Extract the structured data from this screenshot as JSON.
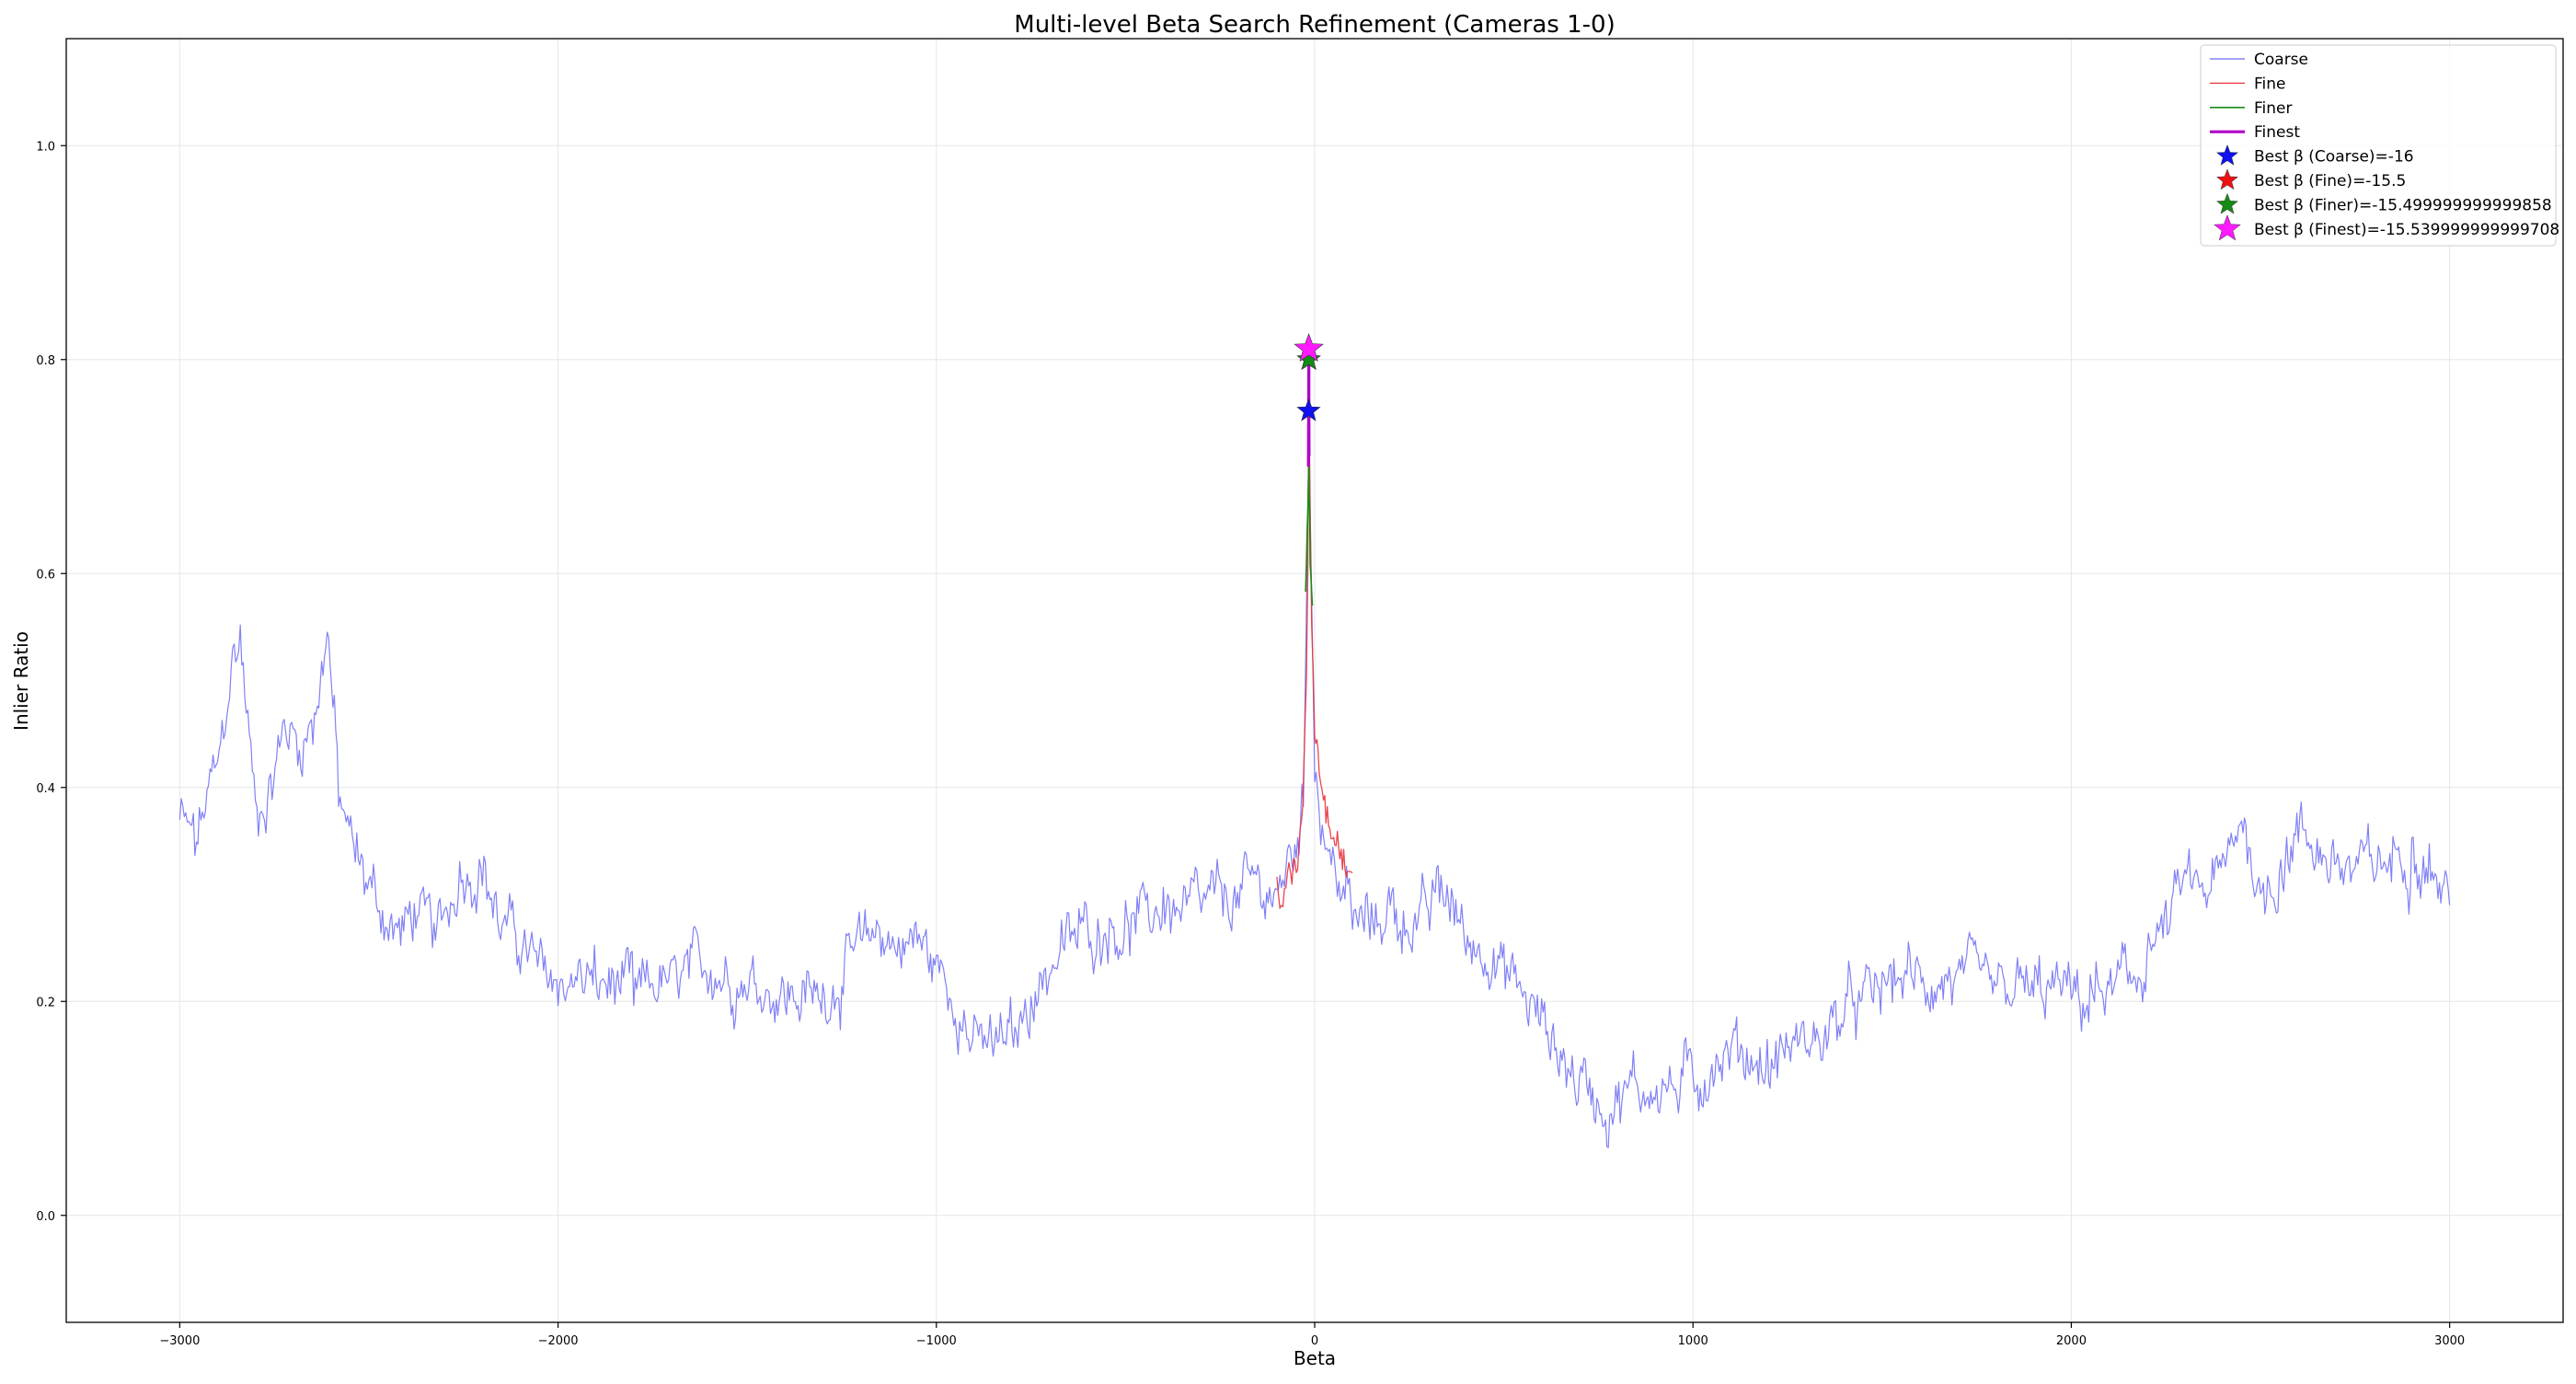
{
  "chart_data": {
    "type": "line",
    "title": "Multi-level Beta Search Refinement (Cameras 1-0)",
    "xlabel": "Beta",
    "ylabel": "Inlier Ratio",
    "xlim": [
      -3300,
      3300
    ],
    "ylim": [
      -0.1,
      1.1
    ],
    "xticks": [
      -3000,
      -2000,
      -1000,
      0,
      1000,
      2000,
      3000
    ],
    "xtick_labels": [
      "−3000",
      "−2000",
      "−1000",
      "0",
      "1000",
      "2000",
      "3000"
    ],
    "yticks": [
      0.0,
      0.2,
      0.4,
      0.6,
      0.8,
      1.0
    ],
    "ytick_labels": [
      "0.0",
      "0.2",
      "0.4",
      "0.6",
      "0.8",
      "1.0"
    ],
    "grid": true,
    "legend_position": "top-right",
    "series": [
      {
        "name": "Coarse",
        "color": "#6b6bf5",
        "noise": 0.03,
        "x": [
          -3000,
          -2960,
          -2900,
          -2860,
          -2840,
          -2800,
          -2760,
          -2720,
          -2680,
          -2640,
          -2610,
          -2580,
          -2540,
          -2500,
          -2460,
          -2420,
          -2380,
          -2320,
          -2260,
          -2200,
          -2160,
          -2100,
          -2050,
          -2000,
          -1900,
          -1800,
          -1700,
          -1600,
          -1500,
          -1400,
          -1300,
          -1200,
          -1150,
          -1100,
          -1050,
          -1000,
          -950,
          -900,
          -850,
          -800,
          -750,
          -700,
          -650,
          -600,
          -550,
          -500,
          -450,
          -400,
          -350,
          -300,
          -250,
          -200,
          -150,
          -100,
          -60,
          -30,
          -15,
          0,
          20,
          40,
          60,
          80,
          100,
          150,
          200,
          250,
          300,
          330,
          350,
          400,
          450,
          500,
          550,
          600,
          650,
          700,
          750,
          780,
          800,
          850,
          900,
          950,
          1000,
          1050,
          1100,
          1150,
          1200,
          1250,
          1300,
          1350,
          1400,
          1450,
          1500,
          1550,
          1600,
          1700,
          1800,
          1900,
          2000,
          2050,
          2100,
          2150,
          2200,
          2250,
          2300,
          2350,
          2400,
          2430,
          2450,
          2500,
          2550,
          2600,
          2650,
          2700,
          2750,
          2800,
          2850,
          2900,
          2950,
          3000
        ],
        "y": [
          0.37,
          0.35,
          0.42,
          0.52,
          0.54,
          0.38,
          0.4,
          0.46,
          0.44,
          0.47,
          0.55,
          0.4,
          0.34,
          0.31,
          0.28,
          0.26,
          0.28,
          0.26,
          0.32,
          0.33,
          0.28,
          0.25,
          0.23,
          0.22,
          0.22,
          0.21,
          0.22,
          0.23,
          0.22,
          0.21,
          0.2,
          0.25,
          0.27,
          0.25,
          0.26,
          0.23,
          0.2,
          0.16,
          0.16,
          0.17,
          0.2,
          0.23,
          0.26,
          0.27,
          0.27,
          0.27,
          0.28,
          0.29,
          0.28,
          0.29,
          0.3,
          0.3,
          0.31,
          0.3,
          0.34,
          0.38,
          0.75,
          0.42,
          0.36,
          0.33,
          0.32,
          0.3,
          0.28,
          0.27,
          0.29,
          0.27,
          0.28,
          0.31,
          0.3,
          0.26,
          0.25,
          0.23,
          0.21,
          0.18,
          0.15,
          0.12,
          0.11,
          0.09,
          0.11,
          0.12,
          0.12,
          0.12,
          0.13,
          0.14,
          0.15,
          0.15,
          0.14,
          0.16,
          0.16,
          0.17,
          0.19,
          0.2,
          0.21,
          0.22,
          0.22,
          0.22,
          0.21,
          0.21,
          0.21,
          0.2,
          0.21,
          0.22,
          0.24,
          0.27,
          0.31,
          0.3,
          0.32,
          0.35,
          0.38,
          0.3,
          0.32,
          0.36,
          0.34,
          0.33,
          0.32,
          0.33,
          0.33,
          0.34,
          0.33,
          0.29
        ]
      },
      {
        "name": "Fine",
        "color": "#e8323c",
        "noise": 0.02,
        "x": [
          -100,
          -80,
          -60,
          -45,
          -35,
          -28,
          -22,
          -18,
          -15.5,
          -12,
          -8,
          -4,
          0,
          6,
          12,
          20,
          30,
          40,
          50,
          60,
          70,
          80,
          90,
          100
        ],
        "y": [
          0.31,
          0.3,
          0.31,
          0.33,
          0.37,
          0.42,
          0.5,
          0.6,
          0.79,
          0.66,
          0.56,
          0.5,
          0.46,
          0.44,
          0.42,
          0.4,
          0.38,
          0.37,
          0.36,
          0.35,
          0.34,
          0.33,
          0.32,
          0.32
        ]
      },
      {
        "name": "Finer",
        "color": "#1a8c1a",
        "noise": 0.015,
        "x": [
          -24,
          -22,
          -20,
          -18,
          -17,
          -16,
          -15.5,
          -15,
          -14,
          -13,
          -12,
          -10,
          -8,
          -6
        ],
        "y": [
          0.58,
          0.6,
          0.63,
          0.66,
          0.68,
          0.7,
          0.8,
          0.68,
          0.66,
          0.64,
          0.62,
          0.6,
          0.58,
          0.57
        ]
      },
      {
        "name": "Finest",
        "color": "#b000c8",
        "noise": 0,
        "x": [
          -16.5,
          -16.2,
          -16,
          -15.8,
          -15.6,
          -15.54,
          -15.4,
          -15.2,
          -15,
          -14.8
        ],
        "y": [
          0.7,
          0.72,
          0.75,
          0.78,
          0.8,
          0.81,
          0.79,
          0.76,
          0.73,
          0.71
        ]
      }
    ],
    "best_points": [
      {
        "name": "Best β (Coarse)=-16",
        "x": -16,
        "y": 0.752,
        "color": "#1010f0",
        "size": 1.0
      },
      {
        "name": "Best β (Fine)=-15.5",
        "x": -15.5,
        "y": 0.8,
        "color": "#ee1111",
        "size": 1.0
      },
      {
        "name": "Best β (Finer)=-15.499999999999858",
        "x": -15.5,
        "y": 0.8,
        "color": "#158a15",
        "size": 1.0
      },
      {
        "name": "Best β (Finest)=-15.539999999999708",
        "x": -15.54,
        "y": 0.81,
        "color": "#ff1aff",
        "size": 1.25
      }
    ],
    "legend_point_overlay_color": "#444444"
  }
}
